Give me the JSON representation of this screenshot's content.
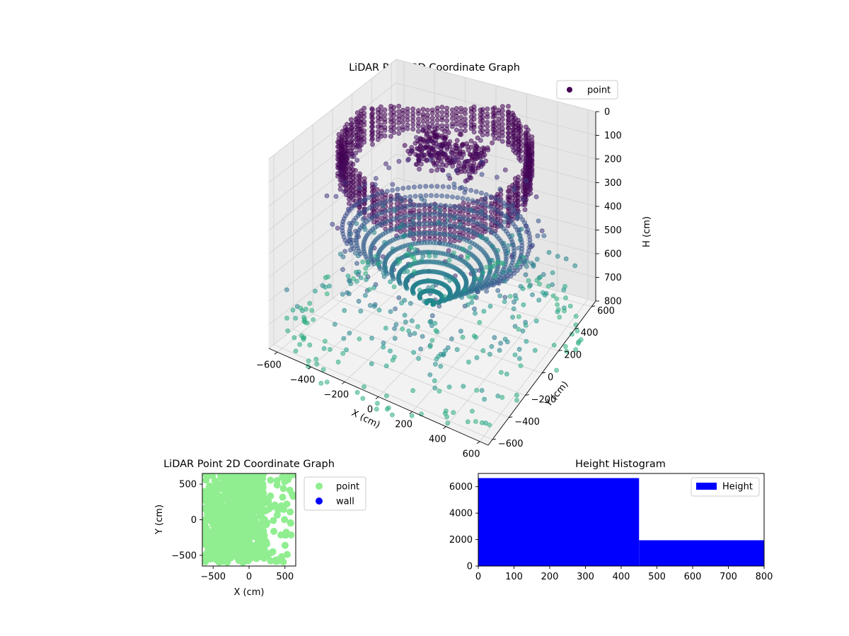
{
  "chart_data": [
    {
      "type": "scatter",
      "title": "LiDAR Point 3D Coordinate Graph",
      "xlabel": "X (cm)",
      "ylabel": "Y (cm)",
      "zlabel": "H (cm)",
      "xlim": [
        -650,
        650
      ],
      "ylim": [
        -650,
        650
      ],
      "zlim": [
        0,
        800
      ],
      "z_inverted": true,
      "x_ticks": [
        -600,
        -400,
        -200,
        0,
        200,
        400,
        600
      ],
      "y_ticks": [
        -600,
        -400,
        -200,
        0,
        200,
        400,
        600
      ],
      "z_ticks": [
        0,
        100,
        200,
        300,
        400,
        500,
        600,
        700,
        800
      ],
      "x_tick_labels": [
        "−600",
        "−400",
        "−200",
        "0",
        "200",
        "400",
        "600"
      ],
      "y_tick_labels": [
        "−600",
        "−400",
        "−200",
        "0",
        "200",
        "400",
        "600"
      ],
      "z_tick_labels": [
        "0",
        "100",
        "200",
        "300",
        "400",
        "500",
        "600",
        "700",
        "800"
      ],
      "grid": true,
      "legend": {
        "position": "top-right",
        "entries": [
          {
            "label": "point",
            "color": "#440154"
          }
        ]
      },
      "colormap": "viridis"
    },
    {
      "type": "scatter",
      "title": "LiDAR Point 2D Coordinate Graph",
      "xlabel": "X (cm)",
      "ylabel": "Y (cm)",
      "xlim": [
        -650,
        650
      ],
      "ylim": [
        -650,
        650
      ],
      "x_ticks": [
        -500,
        0,
        500
      ],
      "y_ticks": [
        -500,
        0,
        500
      ],
      "x_tick_labels": [
        "−500",
        "0",
        "500"
      ],
      "y_tick_labels": [
        "−500",
        "0",
        "500"
      ],
      "series": [
        {
          "name": "point",
          "color": "#90ee90"
        },
        {
          "name": "wall",
          "color": "#0000ff"
        }
      ],
      "legend": {
        "position": "outside-right"
      }
    },
    {
      "type": "bar",
      "title": "Height Histogram",
      "xlim": [
        0,
        800
      ],
      "ylim": [
        0,
        7000
      ],
      "x_ticks": [
        0,
        100,
        200,
        300,
        400,
        500,
        600,
        700,
        800
      ],
      "y_ticks": [
        0,
        2000,
        4000,
        6000
      ],
      "x_tick_labels": [
        "0",
        "100",
        "200",
        "300",
        "400",
        "500",
        "600",
        "700",
        "800"
      ],
      "y_tick_labels": [
        "0",
        "2000",
        "4000",
        "6000"
      ],
      "bins": [
        {
          "x0": 0,
          "x1": 450,
          "count": 6650
        },
        {
          "x0": 450,
          "x1": 800,
          "count": 1950
        }
      ],
      "series": [
        {
          "name": "Height",
          "color": "#0000ff"
        }
      ],
      "legend": {
        "position": "top-right"
      }
    }
  ]
}
